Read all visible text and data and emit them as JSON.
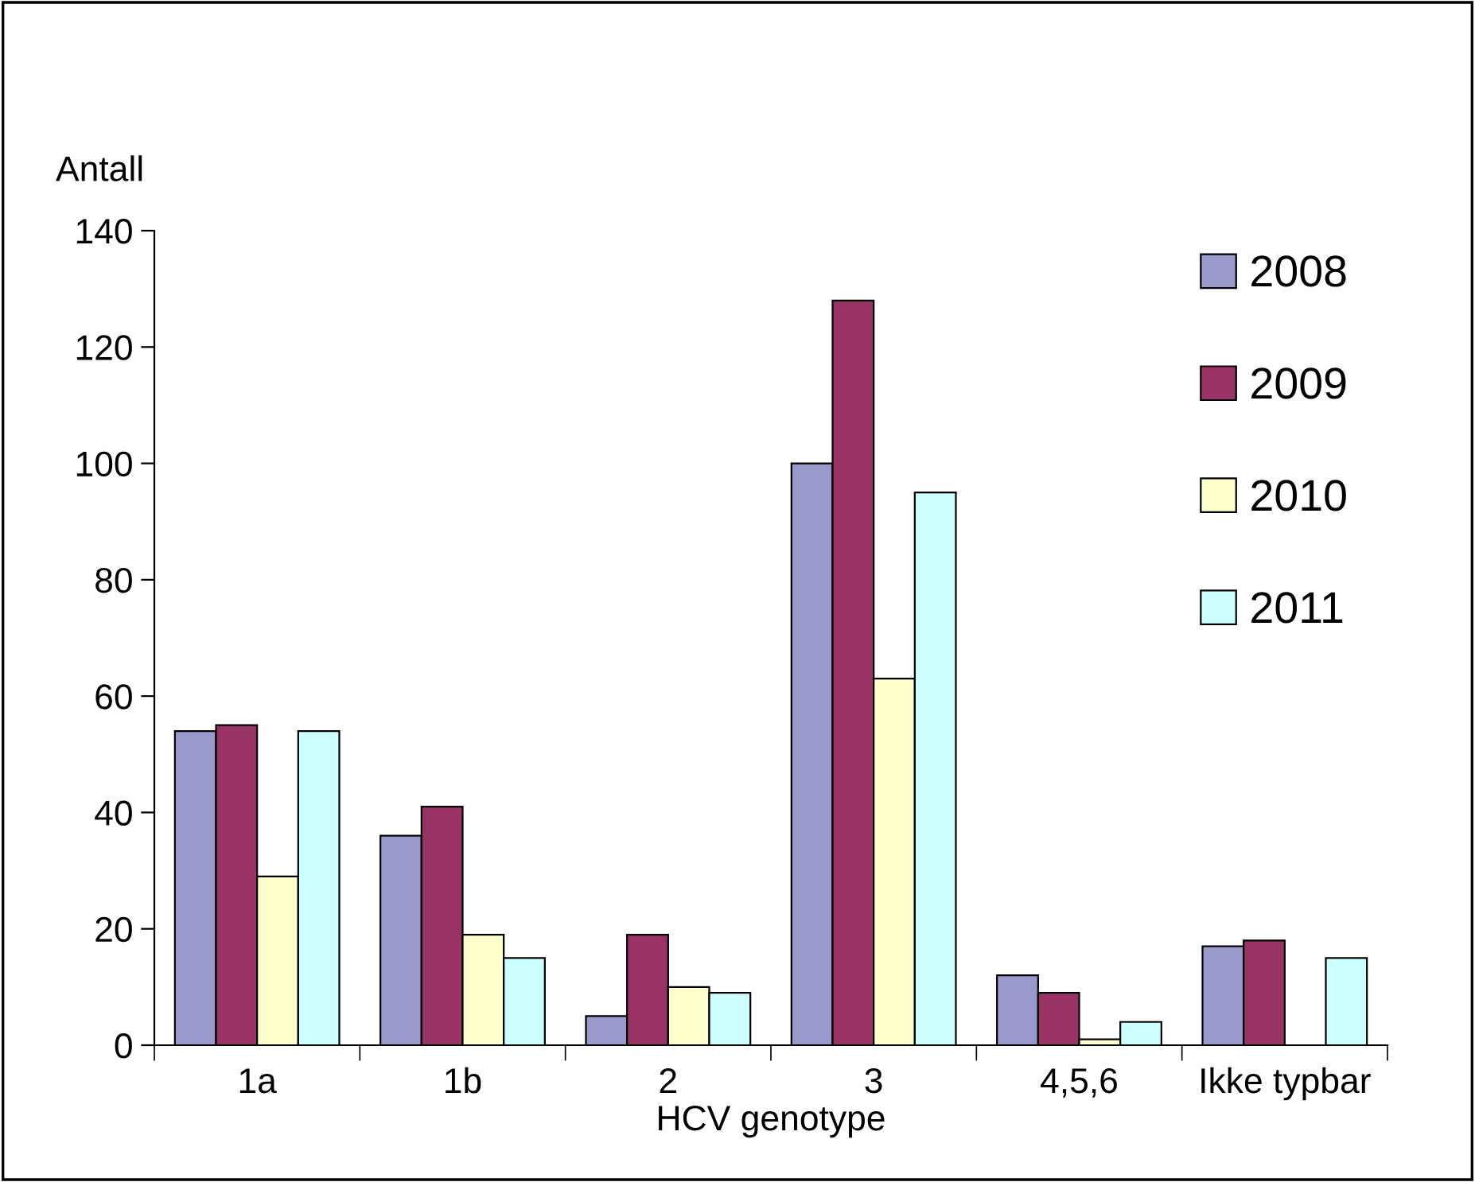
{
  "chart_data": {
    "type": "bar",
    "xlabel": "HCV genotype",
    "ylabel": "Antall",
    "categories": [
      "1a",
      "1b",
      "2",
      "3",
      "4,5,6",
      "Ikke typbar"
    ],
    "series": [
      {
        "name": "2008",
        "color": "#9999cc",
        "values": [
          54,
          36,
          5,
          100,
          12,
          17
        ]
      },
      {
        "name": "2009",
        "color": "#993366",
        "values": [
          55,
          41,
          19,
          128,
          9,
          18
        ]
      },
      {
        "name": "2010",
        "color": "#ffffcc",
        "values": [
          29,
          19,
          10,
          63,
          1,
          null
        ]
      },
      {
        "name": "2011",
        "color": "#ccffff",
        "values": [
          54,
          15,
          9,
          95,
          4,
          15
        ]
      }
    ],
    "ylim": [
      0,
      140
    ],
    "yticks": [
      0,
      20,
      40,
      60,
      80,
      100,
      120,
      140
    ],
    "grid": false,
    "legend": "top right"
  }
}
